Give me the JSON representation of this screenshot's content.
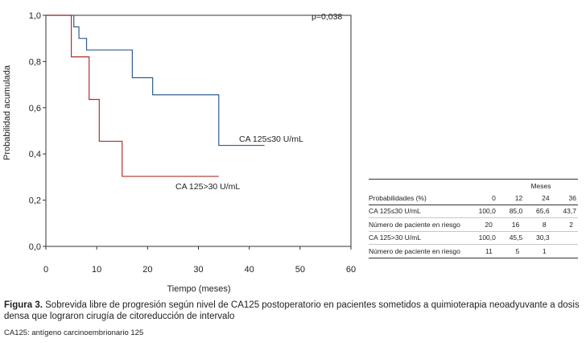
{
  "chart_data": {
    "type": "line",
    "step": true,
    "xlabel": "Tiempo (meses)",
    "ylabel": "Probabilidad acumulada",
    "xlim": [
      0,
      60
    ],
    "ylim": [
      0,
      1
    ],
    "xticks": [
      0,
      10,
      20,
      30,
      40,
      50,
      60
    ],
    "yticks": [
      0,
      0.2,
      0.4,
      0.6,
      0.8,
      1.0
    ],
    "xtick_labels": [
      "0",
      "10",
      "20",
      "30",
      "40",
      "50",
      "60"
    ],
    "ytick_labels": [
      "0,0",
      "0,2",
      "0,4",
      "0,6",
      "0,8",
      "1,0"
    ],
    "grid": false,
    "annotation": "p=0,038",
    "series": [
      {
        "name": "CA 125≤30 U/mL",
        "color": "#2e5e8e",
        "x": [
          0,
          5.5,
          6.5,
          8.0,
          9.0,
          17.0,
          21.0,
          34.0,
          43.0
        ],
        "y": [
          1.0,
          0.95,
          0.9,
          0.85,
          0.85,
          0.73,
          0.656,
          0.437,
          0.437
        ]
      },
      {
        "name": "CA 125>30 U/mL",
        "color": "#b03030",
        "x": [
          0,
          5.0,
          8.5,
          10.5,
          15.0,
          34.0
        ],
        "y": [
          1.0,
          0.82,
          0.636,
          0.455,
          0.303,
          0.303
        ]
      }
    ]
  },
  "risk_table": {
    "title": "Meses",
    "header_label": "Probabilidades (%)",
    "columns": [
      "0",
      "12",
      "24",
      "36"
    ],
    "rows": [
      {
        "label": "CA 125≤30 U/mL",
        "values": [
          "100,0",
          "85,0",
          "65,6",
          "43,7"
        ]
      },
      {
        "label": "Número de paciente en riesgo",
        "values": [
          "20",
          "16",
          "8",
          "2"
        ]
      },
      {
        "label": "CA 125>30 U/mL",
        "values": [
          "100,0",
          "45,5",
          "30,3",
          ""
        ]
      },
      {
        "label": "Número de paciente en riesgo",
        "values": [
          "11",
          "5",
          "1",
          ""
        ]
      }
    ]
  },
  "caption": {
    "label": "Figura 3.",
    "text": "Sobrevida libre de progresión según nivel de CA125 postoperatorio en pacientes sometidos a quimioterapia neoadyuvante a dosis densa que lograron cirugía de citoreducción de intervalo"
  },
  "footnote": "CA125: antígeno carcinoembrionario 125"
}
